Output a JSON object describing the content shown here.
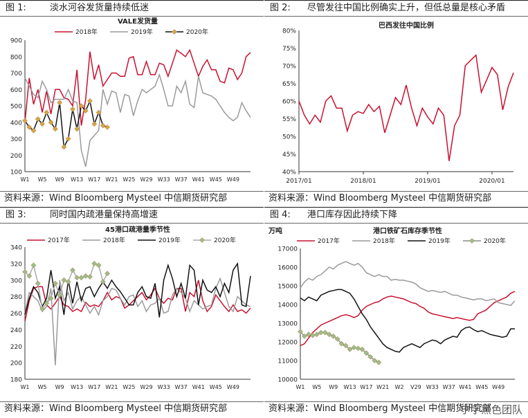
{
  "panels": [
    {
      "fig_label": "图 1:",
      "fig_title": "淡水河谷发货量持续低迷",
      "source": "资料来源：Wind Bloomberg Mysteel 中信期货研究部",
      "chart_data": {
        "type": "line",
        "title": "VALE发货量",
        "ylabel": "",
        "ylim": [
          100,
          900
        ],
        "yticks": [
          100,
          200,
          300,
          400,
          500,
          600,
          700,
          800,
          900
        ],
        "xticklabels": [
          "W1",
          "W5",
          "W9",
          "W13",
          "W17",
          "W21",
          "W25",
          "W29",
          "W33",
          "W37",
          "W41",
          "W45",
          "W49"
        ],
        "series": [
          {
            "name": "2018年",
            "color": "#c8102e",
            "marker": false,
            "values": [
              400,
              670,
              510,
              600,
              460,
              590,
              450,
              600,
              600,
              550,
              540,
              500,
              720,
              380,
              540,
              830,
              660,
              750,
              620,
              660,
              700,
              700,
              680,
              680,
              790,
              800,
              690,
              690,
              770,
              690,
              690,
              760,
              750,
              680,
              760,
              840,
              820,
              800,
              840,
              760,
              680,
              740,
              780,
              720,
              720,
              650,
              640,
              730,
              720,
              660,
              700,
              800,
              825
            ]
          },
          {
            "name": "2019年",
            "color": "#9a9a9a",
            "marker": false,
            "values": [
              670,
              620,
              570,
              550,
              650,
              600,
              520,
              540,
              540,
              540,
              600,
              530,
              520,
              230,
              130,
              290,
              320,
              350,
              600,
              510,
              590,
              580,
              460,
              570,
              560,
              440,
              530,
              600,
              580,
              600,
              620,
              690,
              600,
              500,
              500,
              620,
              580,
              650,
              510,
              490,
              680,
              580,
              570,
              560,
              540,
              500,
              460,
              430,
              410,
              430,
              520,
              470,
              430
            ]
          },
          {
            "name": "2020年",
            "color": "#111111",
            "marker": true,
            "values": [
              410,
              370,
              350,
              420,
              390,
              460,
              400,
              360,
              520,
              250,
              300,
              480,
              360,
              500,
              470,
              530,
              390,
              460,
              380,
              370
            ]
          }
        ]
      }
    },
    {
      "fig_label": "图 2:",
      "fig_title": "尽管发往中国比例确实上升，但低总量是核心矛盾",
      "source": "资料来源：Wind Bloomberg Mysteel 中信期货研究部",
      "chart_data": {
        "type": "line",
        "title": "巴西发往中国比例",
        "ylim": [
          40,
          80
        ],
        "yticks": [
          "40%",
          "45%",
          "50%",
          "55%",
          "60%",
          "65%",
          "70%",
          "75%",
          "80%"
        ],
        "xticklabels": [
          "2017/01",
          "2018/01",
          "2019/01",
          "2020/01"
        ],
        "series": [
          {
            "name": "",
            "color": "#c8102e",
            "marker": false,
            "values": [
              60,
              56,
              53.5,
              56,
              54,
              60,
              61.5,
              58,
              58,
              51.5,
              56,
              57,
              56.5,
              59,
              57,
              58.5,
              51,
              56,
              61,
              59,
              64.5,
              58,
              53,
              58,
              55.5,
              53.5,
              58,
              56,
              43,
              53,
              56,
              70,
              71.5,
              73,
              62.5,
              66,
              69.5,
              67.5,
              57.5,
              64,
              68
            ]
          }
        ]
      }
    },
    {
      "fig_label": "图 3:",
      "fig_title": "同时国内疏港量保持高增速",
      "source": "资料来源：Wind Bloomberg Mysteel 中信期货研究部",
      "chart_data": {
        "type": "line",
        "title": "45港口疏港量季节性",
        "ylim": [
          180,
          340
        ],
        "yticks": [
          180,
          200,
          220,
          240,
          260,
          280,
          300,
          320,
          340
        ],
        "xticklabels": [
          "W1",
          "W5",
          "W9",
          "W13",
          "W17",
          "W21",
          "W25",
          "W29",
          "W33",
          "W37",
          "W41",
          "W45",
          "W49"
        ],
        "series": [
          {
            "name": "2017年",
            "color": "#c8102e",
            "marker": false,
            "values": [
              250,
              275,
              290,
              292,
              292,
              270,
              265,
              272,
              280,
              270,
              268,
              262,
              265,
              262,
              273,
              268,
              270,
              268,
              275,
              285,
              276,
              280,
              278,
              266,
              270,
              275,
              280,
              285,
              276,
              282,
              290,
              278,
              272,
              278,
              276,
              290,
              290,
              262,
              285,
              280,
              300,
              275,
              262,
              268,
              282,
              275,
              268,
              262,
              270,
              262,
              264,
              260,
              266
            ]
          },
          {
            "name": "2018年",
            "color": "#9a9a9a",
            "marker": false,
            "values": [
              260,
              285,
              280,
              275,
              262,
              268,
              290,
              197,
              300,
              275,
              285,
              265,
              275,
              280,
              270,
              260,
              268,
              258,
              275,
              280,
              290,
              288,
              278,
              270,
              280,
              282,
              268,
              275,
              262,
              270,
              272,
              278,
              260,
              262,
              282,
              290,
              285,
              278,
              262,
              275,
              270,
              265,
              268,
              270,
              290,
              302,
              285,
              268,
              262,
              280,
              275,
              270,
              268
            ]
          },
          {
            "name": "2019年",
            "color": "#111111",
            "marker": false,
            "values": [
              258,
              278,
              292,
              285,
              268,
              278,
              312,
              278,
              292,
              258,
              300,
              272,
              298,
              275,
              290,
              292,
              280,
              290,
              298,
              290,
              300,
              292,
              286,
              278,
              270,
              270,
              285,
              292,
              280,
              278,
              296,
              255,
              300,
              318,
              302,
              280,
              296,
              278,
              318,
              312,
              270,
              300,
              288,
              285,
              292,
              280,
              296,
              285,
              312,
              320,
              270,
              268,
              305
            ]
          },
          {
            "name": "2020年",
            "color": "#aaaaaa",
            "marker": true,
            "values": [
              310,
              305,
              318,
              296,
              265,
              272,
              278,
              296,
              282,
              300,
              298,
              312,
              303,
              303,
              305,
              304,
              320,
              318,
              298,
              308
            ]
          }
        ]
      }
    },
    {
      "fig_label": "图 4:",
      "fig_title": "港口库存因此持续下降",
      "source": "资料来源：Wind Bloomberg Mysteel 中信期货研究部",
      "chart_data": {
        "type": "line",
        "title": "港口铁矿石库存季节性",
        "ylabel": "万吨",
        "ylim": [
          10000,
          17000
        ],
        "yticks": [
          10000,
          11000,
          12000,
          13000,
          14000,
          15000,
          16000,
          17000
        ],
        "xticklabels": [
          "W1",
          "W5",
          "W9",
          "W13",
          "W17",
          "W21",
          "W2",
          "V29",
          "W33",
          "W37",
          "W41",
          "W45",
          "W49"
        ],
        "series": [
          {
            "name": "2017年",
            "color": "#c8102e",
            "marker": false,
            "values": [
              11800,
              11900,
              12200,
              12500,
              12700,
              12900,
              13000,
              13100,
              13200,
              13300,
              13400,
              13450,
              13400,
              13300,
              13400,
              13700,
              13900,
              14000,
              14100,
              14150,
              14300,
              14400,
              14450,
              14400,
              14350,
              14300,
              14200,
              14100,
              14050,
              13900,
              13800,
              13600,
              13500,
              13450,
              13400,
              13350,
              13300,
              13250,
              13300,
              13250,
              13200,
              13150,
              13200,
              13500,
              13600,
              13700,
              13900,
              14100,
              14200,
              14300,
              14400,
              14600,
              14700
            ]
          },
          {
            "name": "2018年",
            "color": "#9a9a9a",
            "marker": false,
            "values": [
              14900,
              15200,
              15400,
              15300,
              15500,
              15600,
              15800,
              16000,
              15900,
              16100,
              16200,
              16300,
              16200,
              16100,
              16200,
              16000,
              15700,
              15600,
              15500,
              15600,
              15500,
              15500,
              15300,
              15350,
              15300,
              15300,
              15250,
              15200,
              15100,
              14900,
              14800,
              14700,
              14750,
              14700,
              14650,
              14700,
              14600,
              14500,
              14500,
              14400,
              14350,
              14300,
              14250,
              14300,
              14300,
              14200,
              14250,
              14300,
              14100,
              14050,
              14000,
              13950,
              14200
            ]
          },
          {
            "name": "2019年",
            "color": "#111111",
            "marker": false,
            "values": [
              14350,
              14200,
              14400,
              14300,
              14200,
              14500,
              14600,
              14700,
              14750,
              14800,
              14800,
              14700,
              14600,
              14300,
              13900,
              13500,
              13200,
              12800,
              12500,
              12200,
              11900,
              11700,
              11600,
              11500,
              11450,
              11700,
              11800,
              11900,
              11800,
              11700,
              11900,
              12000,
              12100,
              12050,
              11900,
              12100,
              12200,
              12300,
              12250,
              12600,
              12750,
              12800,
              12650,
              12550,
              12600,
              12500,
              12400,
              12350,
              12300,
              12250,
              12300,
              12700,
              12700
            ]
          },
          {
            "name": "2020年",
            "color": "#8a8a8a",
            "marker": true,
            "values": [
              12550,
              12300,
              12400,
              12350,
              12400,
              12500,
              12500,
              12400,
              12300,
              12150,
              11900,
              11800,
              11600,
              11700,
              11650,
              11600,
              11400,
              11200,
              11000,
              10900
            ]
          }
        ]
      }
    }
  ],
  "watermark": "宁宇黑色团队"
}
